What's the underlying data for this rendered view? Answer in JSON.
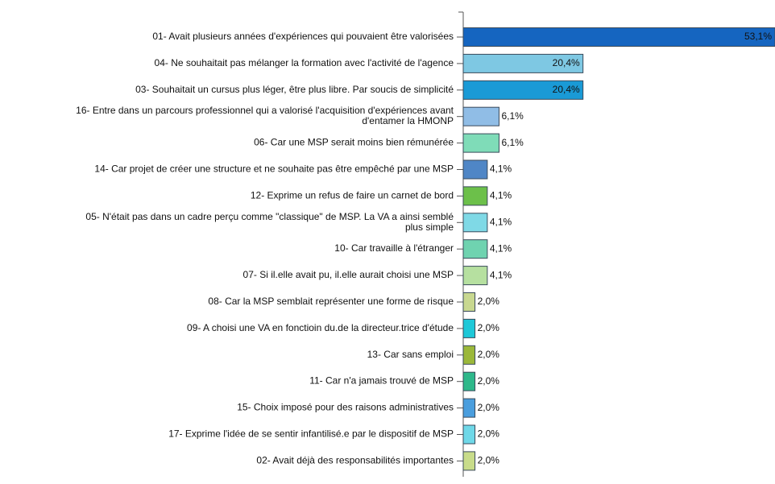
{
  "chart_data": {
    "type": "bar",
    "orientation": "horizontal",
    "categories": [
      "01- Avait plusieurs années d'expériences qui pouvaient être valorisées",
      "04- Ne souhaitait pas mélanger la formation avec l'activité de l'agence",
      "03- Souhaitait un cursus plus léger, être plus libre. Par soucis de simplicité",
      "16- Entre dans un parcours professionnel qui a valorisé l'acquisition d'expériences avant\nd'entamer la HMONP",
      "06- Car une MSP serait moins bien rémunérée",
      "14- Car projet de créer une structure et ne souhaite pas être empêché par une MSP",
      "12- Exprime un refus de faire un carnet de bord",
      "05- N'était pas dans un cadre perçu comme \"classique\" de MSP. La VA a ainsi semblé\nplus simple",
      "10- Car travaille à l'étranger",
      "07- Si il.elle avait pu, il.elle aurait choisi une MSP",
      "08- Car la MSP semblait représenter une forme de risque",
      "09- A choisi une VA en fonctioin du.de la directeur.trice d'étude",
      "13- Car sans emploi",
      "11- Car n'a jamais trouvé de MSP",
      "15- Choix imposé pour des raisons administratives",
      "17- Exprime l'idée de se sentir infantilisé.e par le dispositif de MSP",
      "02- Avait déjà des responsabilités importantes"
    ],
    "values": [
      53.1,
      20.4,
      20.4,
      6.1,
      6.1,
      4.1,
      4.1,
      4.1,
      4.1,
      4.1,
      2.0,
      2.0,
      2.0,
      2.0,
      2.0,
      2.0,
      2.0
    ],
    "value_labels": [
      "53,1%",
      "20,4%",
      "20,4%",
      "6,1%",
      "6,1%",
      "4,1%",
      "4,1%",
      "4,1%",
      "4,1%",
      "4,1%",
      "2,0%",
      "2,0%",
      "2,0%",
      "2,0%",
      "2,0%",
      "2,0%",
      "2,0%"
    ],
    "colors": [
      "#1565c0",
      "#7ec8e3",
      "#1a9ad6",
      "#90bde6",
      "#7fdcb8",
      "#4f86c6",
      "#6cc04a",
      "#7fd9e6",
      "#6fd3b0",
      "#b6e0a0",
      "#c8d890",
      "#1ec8d8",
      "#9bb83a",
      "#2eb88a",
      "#4a9ede",
      "#6fd8e8",
      "#c8dc8a"
    ],
    "xlim": [
      0,
      53.1
    ]
  }
}
